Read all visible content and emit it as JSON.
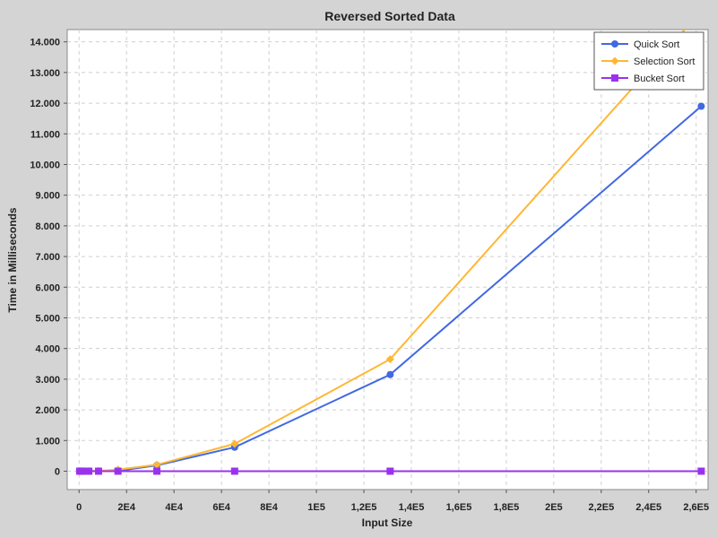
{
  "chart_data": {
    "type": "line",
    "title": "Reversed Sorted Data",
    "xlabel": "Input Size",
    "ylabel": "Time in Milliseconds",
    "xlim": [
      -5000,
      265000
    ],
    "ylim": [
      -600,
      14400
    ],
    "grid": true,
    "legend_position": "top-right",
    "x_ticks": [
      {
        "value": 0,
        "label": "0"
      },
      {
        "value": 20000,
        "label": "2E4"
      },
      {
        "value": 40000,
        "label": "4E4"
      },
      {
        "value": 60000,
        "label": "6E4"
      },
      {
        "value": 80000,
        "label": "8E4"
      },
      {
        "value": 100000,
        "label": "1E5"
      },
      {
        "value": 120000,
        "label": "1,2E5"
      },
      {
        "value": 140000,
        "label": "1,4E5"
      },
      {
        "value": 160000,
        "label": "1,6E5"
      },
      {
        "value": 180000,
        "label": "1,8E5"
      },
      {
        "value": 200000,
        "label": "2E5"
      },
      {
        "value": 220000,
        "label": "2,2E5"
      },
      {
        "value": 240000,
        "label": "2,4E5"
      },
      {
        "value": 260000,
        "label": "2,6E5"
      }
    ],
    "y_ticks": [
      {
        "value": 0,
        "label": "0"
      },
      {
        "value": 1000,
        "label": "1.000"
      },
      {
        "value": 2000,
        "label": "2.000"
      },
      {
        "value": 3000,
        "label": "3.000"
      },
      {
        "value": 4000,
        "label": "4.000"
      },
      {
        "value": 5000,
        "label": "5.000"
      },
      {
        "value": 6000,
        "label": "6.000"
      },
      {
        "value": 7000,
        "label": "7.000"
      },
      {
        "value": 8000,
        "label": "8.000"
      },
      {
        "value": 9000,
        "label": "9.000"
      },
      {
        "value": 10000,
        "label": "10.000"
      },
      {
        "value": 11000,
        "label": "11.000"
      },
      {
        "value": 12000,
        "label": "12.000"
      },
      {
        "value": 13000,
        "label": "13.000"
      },
      {
        "value": 14000,
        "label": "14.000"
      }
    ],
    "x": [
      256,
      512,
      1024,
      2048,
      4096,
      8192,
      16384,
      32768,
      65536,
      131072,
      262144
    ],
    "series": [
      {
        "name": "Quick Sort",
        "color": "#4169e1",
        "marker": "circle",
        "values": [
          0,
          0,
          0,
          0,
          1,
          3,
          12,
          190,
          780,
          3150,
          11900
        ]
      },
      {
        "name": "Selection Sort",
        "color": "#ffb733",
        "marker": "diamond",
        "values": [
          0,
          0,
          0,
          1,
          3,
          12,
          50,
          210,
          890,
          3650,
          15000
        ]
      },
      {
        "name": "Bucket Sort",
        "color": "#9932f0",
        "marker": "square",
        "values": [
          0,
          0,
          0,
          0,
          0,
          0,
          0,
          0,
          0,
          0,
          0
        ]
      }
    ]
  }
}
